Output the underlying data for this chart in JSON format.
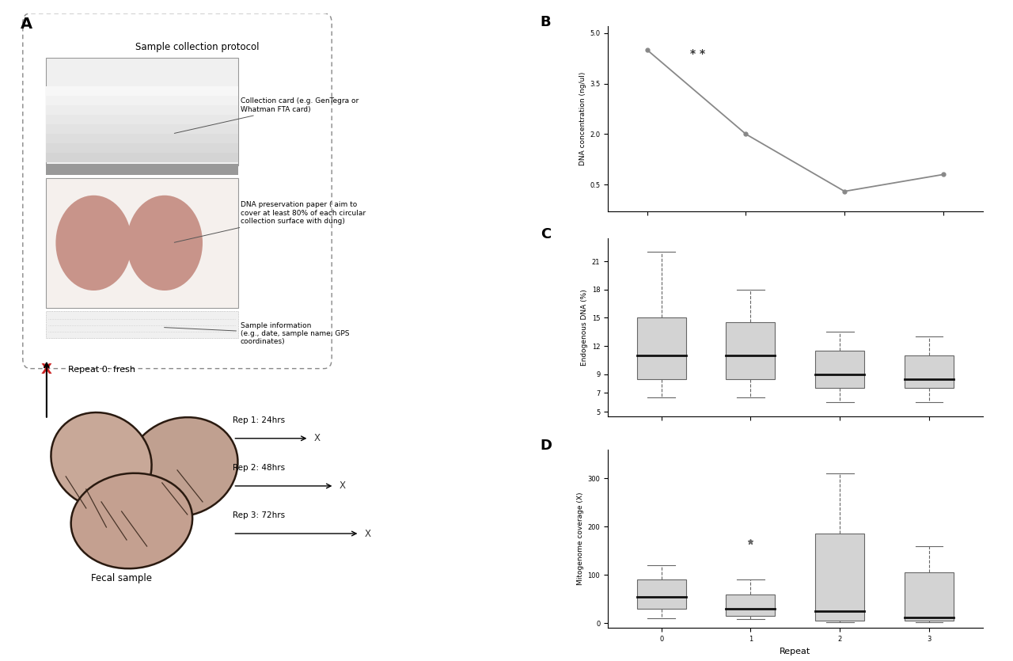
{
  "panel_b": {
    "x": [
      0,
      1,
      2,
      3
    ],
    "y": [
      4.5,
      2.0,
      0.3,
      0.8
    ],
    "ylabel": "DNA concentration (ng/ul)",
    "annotation": "* *",
    "ylim": [
      -0.3,
      5.2
    ],
    "yticks": [
      0.5,
      2.0,
      3.5,
      5.0
    ]
  },
  "panel_c": {
    "ylabel": "Endogenous DNA (%)",
    "boxes": [
      {
        "repeat": 0,
        "median": 11.0,
        "q1": 8.5,
        "q3": 15.0,
        "whisker_low": 6.5,
        "whisker_high": 22.0,
        "outliers": []
      },
      {
        "repeat": 1,
        "median": 11.0,
        "q1": 8.5,
        "q3": 14.5,
        "whisker_low": 6.5,
        "whisker_high": 18.0,
        "outliers": []
      },
      {
        "repeat": 2,
        "median": 9.0,
        "q1": 7.5,
        "q3": 11.5,
        "whisker_low": 6.0,
        "whisker_high": 13.5,
        "outliers": []
      },
      {
        "repeat": 3,
        "median": 8.5,
        "q1": 7.5,
        "q3": 11.0,
        "whisker_low": 6.0,
        "whisker_high": 13.0,
        "outliers": []
      }
    ],
    "ylim": [
      4.5,
      23.5
    ],
    "yticks": [
      5,
      7,
      9,
      12,
      15,
      18,
      21
    ]
  },
  "panel_d": {
    "ylabel": "Mitogenome coverage (X)",
    "xlabel": "Repeat",
    "boxes": [
      {
        "repeat": 0,
        "median": 55,
        "q1": 30,
        "q3": 90,
        "whisker_low": 10,
        "whisker_high": 120,
        "outliers": []
      },
      {
        "repeat": 1,
        "median": 30,
        "q1": 15,
        "q3": 60,
        "whisker_low": 8,
        "whisker_high": 90,
        "outliers": [
          170
        ]
      },
      {
        "repeat": 2,
        "median": 25,
        "q1": 5,
        "q3": 185,
        "whisker_low": 2,
        "whisker_high": 310,
        "outliers": []
      },
      {
        "repeat": 3,
        "median": 12,
        "q1": 5,
        "q3": 105,
        "whisker_low": 2,
        "whisker_high": 160,
        "outliers": []
      }
    ],
    "ylim": [
      -10,
      360
    ],
    "yticks": [
      0,
      100,
      200,
      300
    ]
  },
  "box_color": "#d3d3d3",
  "box_edge_color": "#666666",
  "line_color": "#888888",
  "bg_color": "#ffffff"
}
